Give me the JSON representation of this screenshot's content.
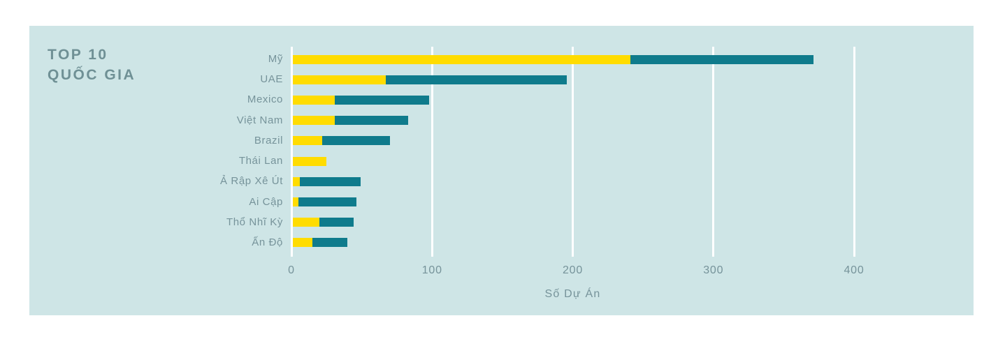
{
  "panel": {
    "title_line1": "TOP 10",
    "title_line2": "QUỐC GIA"
  },
  "chart_data": {
    "type": "bar",
    "orientation": "horizontal",
    "stacked": true,
    "title": "TOP 10 QUỐC GIA",
    "xlabel": "Số Dự Án",
    "ylabel": "",
    "categories": [
      "Mỹ",
      "UAE",
      "Mexico",
      "Việt Nam",
      "Brazil",
      "Thái Lan",
      "Ả Rập Xê Út",
      "Ai Cập",
      "Thổ Nhĩ Kỳ",
      "Ấn Độ"
    ],
    "series": [
      {
        "name": "segment-yellow",
        "color": "#ffdc00",
        "values": [
          240,
          66,
          30,
          30,
          21,
          24,
          5,
          4,
          19,
          14
        ]
      },
      {
        "name": "segment-teal",
        "color": "#0f7b8c",
        "values": [
          130,
          129,
          67,
          52,
          48,
          0,
          43,
          41,
          24,
          25
        ]
      }
    ],
    "totals": [
      370,
      195,
      97,
      82,
      69,
      24,
      48,
      45,
      43,
      39
    ],
    "x_ticks": [
      0,
      100,
      200,
      300,
      400
    ],
    "xlim": [
      0,
      485
    ],
    "grid": "vertical-white-gridlines",
    "legend": "none"
  },
  "colors": {
    "background": "#ffffff",
    "panel": "#cee5e6",
    "bar_yellow": "#ffdc00",
    "bar_teal": "#0f7b8c",
    "gridline": "#ffffff",
    "text": "#76939a",
    "title_text": "#6f9095"
  }
}
